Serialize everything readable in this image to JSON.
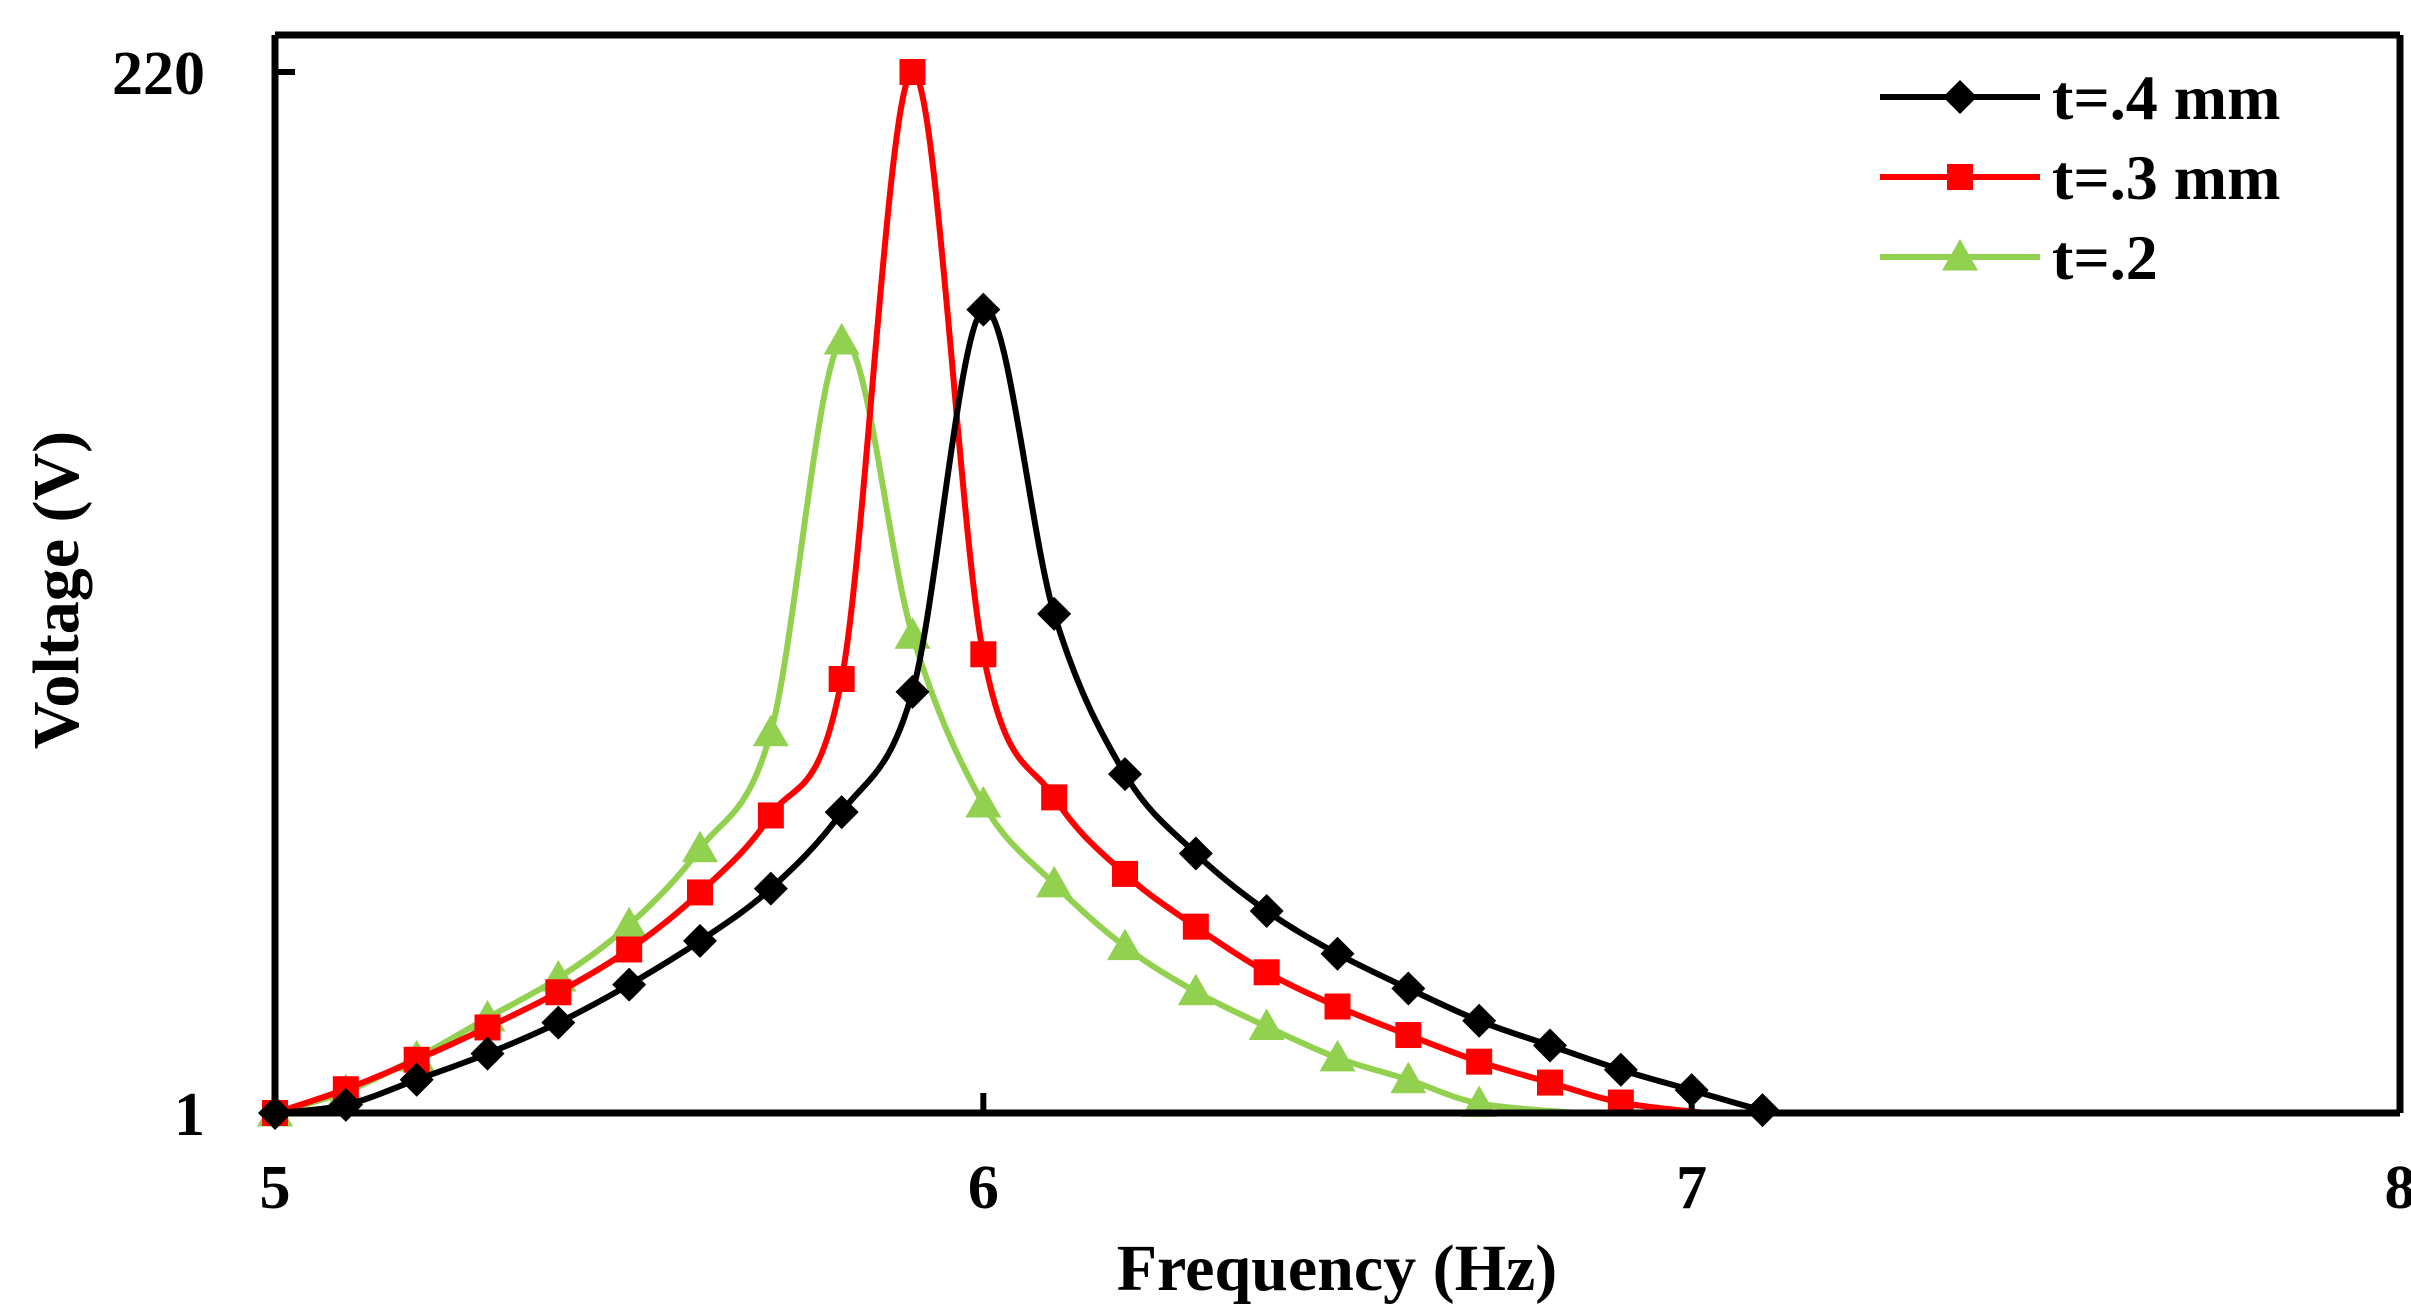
{
  "chart_data": {
    "type": "line",
    "title": "",
    "xlabel": "Frequency (Hz)",
    "ylabel": "Voltage (V)",
    "xlim": [
      5,
      8
    ],
    "ylim": [
      1,
      220
    ],
    "x_ticks": [
      5,
      6,
      7,
      8
    ],
    "x_tick_labels": [
      "5",
      "6",
      "7",
      "8"
    ],
    "y_tick_labels": [
      "1",
      "220"
    ],
    "y_tick_values": [
      1,
      220
    ],
    "legend_position": "top-right",
    "series": [
      {
        "name": "t=.4 mm",
        "color": "#000000",
        "marker": "diamond",
        "x": [
          5.0,
          5.1,
          5.2,
          5.3,
          5.4,
          5.5,
          5.6,
          5.7,
          5.8,
          5.9,
          6.0,
          6.1,
          6.2,
          6.3,
          6.4,
          6.5,
          6.6,
          6.7,
          6.8,
          6.9,
          7.0,
          7.1
        ],
        "y": [
          1,
          2.7,
          8,
          13.5,
          20,
          28,
          37.2,
          48.2,
          64.3,
          89.6,
          170,
          106,
          72.3,
          55.6,
          43.5,
          34.5,
          27.2,
          20.4,
          15.2,
          10.1,
          5.8,
          1.6
        ],
        "tail": [
          7.15,
          1
        ]
      },
      {
        "name": "t=.3 mm",
        "color": "#ff0000",
        "marker": "square",
        "x": [
          5.0,
          5.1,
          5.2,
          5.3,
          5.4,
          5.5,
          5.6,
          5.7,
          5.8,
          5.9,
          6.0,
          6.1,
          6.2,
          6.3,
          6.4,
          6.5,
          6.6,
          6.7,
          6.8,
          6.9
        ],
        "y": [
          1,
          6,
          12.2,
          19,
          26.4,
          35.4,
          47.4,
          63.6,
          92.3,
          220,
          97.5,
          67.4,
          51.3,
          40.2,
          30.6,
          23.4,
          17.4,
          11.8,
          7.4,
          3.2
        ],
        "tail": [
          7.02,
          1
        ]
      },
      {
        "name": "t=.2",
        "color": "#92d050",
        "marker": "triangle",
        "x": [
          5.0,
          5.1,
          5.2,
          5.3,
          5.4,
          5.5,
          5.6,
          5.7,
          5.8,
          5.9,
          6.0,
          6.1,
          6.2,
          6.3,
          6.4,
          6.5,
          6.6,
          6.7
        ],
        "y": [
          1,
          5.5,
          12.6,
          21,
          29.4,
          40.6,
          56.6,
          81,
          163.4,
          101.5,
          66,
          49.2,
          36,
          26.5,
          19.2,
          12.6,
          8,
          3
        ],
        "tail": [
          6.84,
          1
        ]
      }
    ]
  }
}
